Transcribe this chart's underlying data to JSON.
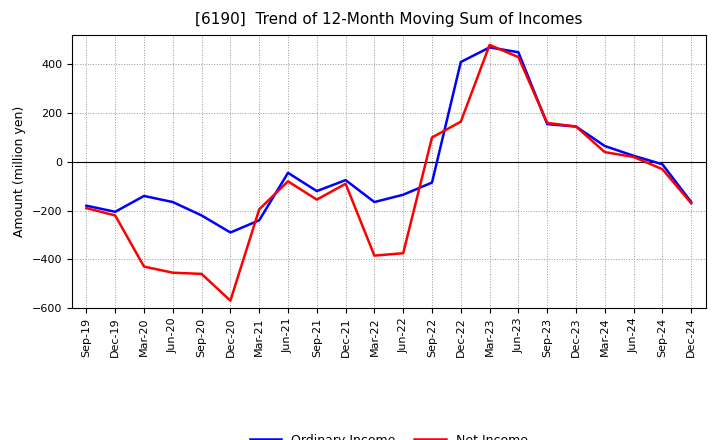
{
  "title": "[6190]  Trend of 12-Month Moving Sum of Incomes",
  "ylabel": "Amount (million yen)",
  "ylim": [
    -600,
    520
  ],
  "yticks": [
    -600,
    -400,
    -200,
    0,
    200,
    400
  ],
  "background_color": "#ffffff",
  "grid_color": "#999999",
  "x_labels": [
    "Sep-19",
    "Dec-19",
    "Mar-20",
    "Jun-20",
    "Sep-20",
    "Dec-20",
    "Mar-21",
    "Jun-21",
    "Sep-21",
    "Dec-21",
    "Mar-22",
    "Jun-22",
    "Sep-22",
    "Dec-22",
    "Mar-23",
    "Jun-23",
    "Sep-23",
    "Dec-23",
    "Mar-24",
    "Jun-24",
    "Sep-24",
    "Dec-24"
  ],
  "ordinary_income": [
    -180,
    -205,
    -140,
    -165,
    -220,
    -290,
    -240,
    -45,
    -120,
    -75,
    -165,
    -135,
    -85,
    410,
    470,
    450,
    155,
    145,
    65,
    25,
    -10,
    -165
  ],
  "net_income": [
    -190,
    -220,
    -430,
    -455,
    -460,
    -570,
    -195,
    -80,
    -155,
    -90,
    -385,
    -375,
    100,
    165,
    480,
    430,
    160,
    145,
    40,
    20,
    -30,
    -170
  ],
  "ordinary_color": "#0000ff",
  "net_color": "#ff0000",
  "line_width": 1.8,
  "title_fontsize": 11,
  "label_fontsize": 9,
  "tick_fontsize": 8
}
